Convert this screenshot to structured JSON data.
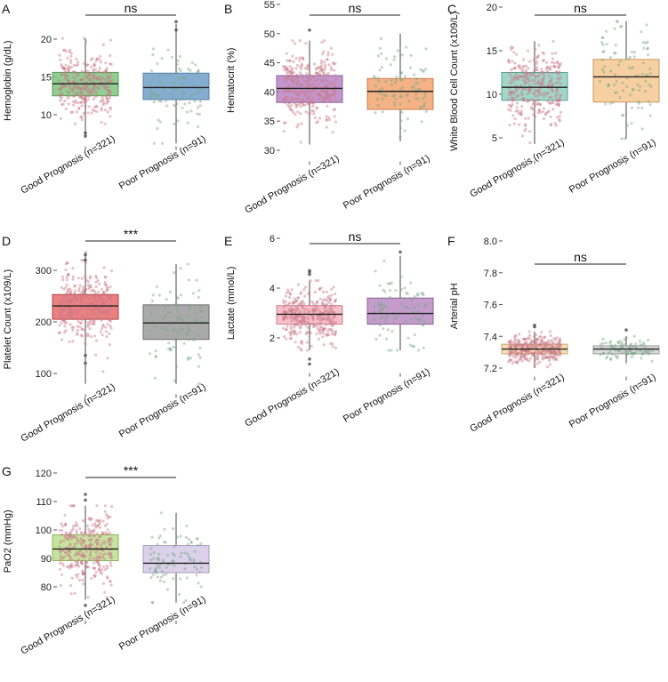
{
  "figure_title": "",
  "chart_data": [
    {
      "type": "box",
      "panel": "A",
      "title": "",
      "ylabel": "Hemoglobin (g/dL)",
      "xlabel": "",
      "categories": [
        "Good Prognosis (n=321)",
        "Poor Prognosis (n=91)"
      ],
      "yticks": [
        10,
        15,
        20
      ],
      "ylim": [
        6.5,
        22.5
      ],
      "significance": "ns",
      "point_counts": [
        321,
        91
      ],
      "boxes": [
        {
          "name": "Good Prognosis (n=321)",
          "q1": 12.5,
          "median": 14.1,
          "q3": 15.6,
          "whisker_low": 6.9,
          "whisker_high": 20.1,
          "fill": "#7fc47f",
          "edge": "#5a9a5a"
        },
        {
          "name": "Poor Prognosis (n=91)",
          "q1": 12.0,
          "median": 13.6,
          "q3": 15.5,
          "whisker_low": 6.2,
          "whisker_high": 22.0,
          "fill": "#6f9fc8",
          "edge": "#5580a8"
        }
      ],
      "points": [
        {
          "color": "#c97a8a"
        },
        {
          "color": "#7aa88a"
        }
      ],
      "outliers": [
        [
          7.2,
          7.6
        ],
        [
          21.2,
          22.3
        ]
      ]
    },
    {
      "type": "box",
      "panel": "B",
      "title": "",
      "ylabel": "Hematocrit (%)",
      "xlabel": "",
      "categories": [
        "Good Prognosis (n=321)",
        "Poor Prognosis (n=91)"
      ],
      "yticks": [
        30,
        35,
        40,
        45,
        50,
        55
      ],
      "ylim": [
        29,
        55
      ],
      "significance": "ns",
      "point_counts": [
        321,
        91
      ],
      "boxes": [
        {
          "name": "Good Prognosis (n=321)",
          "q1": 38.2,
          "median": 40.6,
          "q3": 42.8,
          "whisker_low": 31.0,
          "whisker_high": 48.8,
          "fill": "#b985c4",
          "edge": "#8f5e9c"
        },
        {
          "name": "Poor Prognosis (n=91)",
          "q1": 37.0,
          "median": 40.1,
          "q3": 42.3,
          "whisker_low": 31.5,
          "whisker_high": 50.0,
          "fill": "#f2a470",
          "edge": "#c98050"
        }
      ],
      "points": [
        {
          "color": "#c97a8a"
        },
        {
          "color": "#7aa88a"
        }
      ],
      "outliers": [
        [
          50.6
        ],
        []
      ]
    },
    {
      "type": "box",
      "panel": "C",
      "title": "",
      "ylabel": "White Blood Cell Count (x109/L)",
      "xlabel": "",
      "categories": [
        "Good Prognosis (n=321)",
        "Poor Prognosis (n=91)"
      ],
      "yticks": [
        5,
        10,
        15,
        20
      ],
      "ylim": [
        3,
        20
      ],
      "significance": "ns",
      "point_counts": [
        321,
        91
      ],
      "boxes": [
        {
          "name": "Good Prognosis (n=321)",
          "q1": 9.3,
          "median": 10.8,
          "q3": 12.5,
          "whisker_low": 4.3,
          "whisker_high": 16.1,
          "fill": "#8fd0c0",
          "edge": "#5aa090"
        },
        {
          "name": "Poor Prognosis (n=91)",
          "q1": 9.1,
          "median": 12.0,
          "q3": 14.0,
          "whisker_low": 4.9,
          "whisker_high": 18.4,
          "fill": "#f6c890",
          "edge": "#c89a60"
        }
      ],
      "points": [
        {
          "color": "#c97a8a"
        },
        {
          "color": "#7aa88a"
        }
      ],
      "outliers": [
        [],
        []
      ]
    },
    {
      "type": "box",
      "panel": "D",
      "title": "",
      "ylabel": "Platelet Count (x109/L)",
      "xlabel": "",
      "categories": [
        "Good Prognosis (n=321)",
        "Poor Prognosis (n=91)"
      ],
      "yticks": [
        100,
        200,
        300
      ],
      "ylim": [
        70,
        340
      ],
      "significance": "***",
      "point_counts": [
        321,
        91
      ],
      "boxes": [
        {
          "name": "Good Prognosis (n=321)",
          "q1": 205,
          "median": 231,
          "q3": 253,
          "whisker_low": 80,
          "whisker_high": 335,
          "fill": "#e86a6a",
          "edge": "#b04545"
        },
        {
          "name": "Poor Prognosis (n=91)",
          "q1": 166,
          "median": 198,
          "q3": 233,
          "whisker_low": 80,
          "whisker_high": 312,
          "fill": "#9a9a9a",
          "edge": "#6a6a6a"
        }
      ],
      "points": [
        {
          "color": "#c97a8a"
        },
        {
          "color": "#7aa88a"
        }
      ],
      "outliers": [
        [
          120,
          135,
          320,
          330
        ],
        []
      ]
    },
    {
      "type": "box",
      "panel": "E",
      "title": "",
      "ylabel": "Lactate (mmol/L)",
      "xlabel": "",
      "categories": [
        "Good Prognosis (n=321)",
        "Poor Prognosis (n=91)"
      ],
      "yticks": [
        2,
        4,
        6
      ],
      "ylim": [
        0.8,
        6.0
      ],
      "significance": "ns",
      "point_counts": [
        321,
        91
      ],
      "boxes": [
        {
          "name": "Good Prognosis (n=321)",
          "q1": 2.55,
          "median": 2.95,
          "q3": 3.3,
          "whisker_low": 1.5,
          "whisker_high": 4.3,
          "fill": "#f5b3bc",
          "edge": "#c88890"
        },
        {
          "name": "Poor Prognosis (n=91)",
          "q1": 2.55,
          "median": 2.98,
          "q3": 3.6,
          "whisker_low": 1.5,
          "whisker_high": 5.3,
          "fill": "#b98bc2",
          "edge": "#8f6098"
        }
      ],
      "points": [
        {
          "color": "#c97a8a"
        },
        {
          "color": "#7aa88a"
        }
      ],
      "outliers": [
        [
          0.95,
          1.15,
          4.55,
          4.65,
          4.7
        ],
        [
          5.45
        ]
      ]
    },
    {
      "type": "box",
      "panel": "F",
      "title": "",
      "ylabel": "Arterial pH",
      "xlabel": "",
      "categories": [
        "Good Prognosis (n=321)",
        "Poor Prognosis (n=91)"
      ],
      "yticks": [
        7.2,
        7.4,
        7.6,
        7.8,
        8.0
      ],
      "ylim": [
        7.18,
        8.0
      ],
      "significance": "ns",
      "point_counts": [
        321,
        91
      ],
      "boxes": [
        {
          "name": "Good Prognosis (n=321)",
          "q1": 7.29,
          "median": 7.32,
          "q3": 7.35,
          "whisker_low": 7.2,
          "whisker_high": 7.43,
          "fill": "#f6d9a8",
          "edge": "#c8a878"
        },
        {
          "name": "Poor Prognosis (n=91)",
          "q1": 7.29,
          "median": 7.32,
          "q3": 7.34,
          "whisker_low": 7.23,
          "whisker_high": 7.4,
          "fill": "#d4d4d4",
          "edge": "#9a9a9a"
        }
      ],
      "points": [
        {
          "color": "#c97a8a"
        },
        {
          "color": "#7aa88a"
        }
      ],
      "outliers": [
        [
          7.46,
          7.47
        ],
        [
          7.44
        ]
      ]
    },
    {
      "type": "box",
      "panel": "G",
      "title": "",
      "ylabel": "PaO2 (mmHg)",
      "xlabel": "",
      "categories": [
        "Good Prognosis (n=321)",
        "Poor Prognosis (n=91)"
      ],
      "yticks": [
        80,
        90,
        100,
        110,
        120
      ],
      "ylim": [
        70,
        122
      ],
      "significance": "***",
      "point_counts": [
        321,
        91
      ],
      "boxes": [
        {
          "name": "Good Prognosis (n=321)",
          "q1": 89.2,
          "median": 93.3,
          "q3": 98.3,
          "whisker_low": 75.5,
          "whisker_high": 108.5,
          "fill": "#bde08f",
          "edge": "#8fb060"
        },
        {
          "name": "Poor Prognosis (n=91)",
          "q1": 85.0,
          "median": 88.3,
          "q3": 94.5,
          "whisker_low": 74.5,
          "whisker_high": 106.0,
          "fill": "#d5c9e6",
          "edge": "#a89abc"
        }
      ],
      "points": [
        {
          "color": "#c97a8a"
        },
        {
          "color": "#7aa88a"
        }
      ],
      "outliers": [
        [
          73.5,
          110.5,
          112.5
        ],
        []
      ]
    }
  ]
}
